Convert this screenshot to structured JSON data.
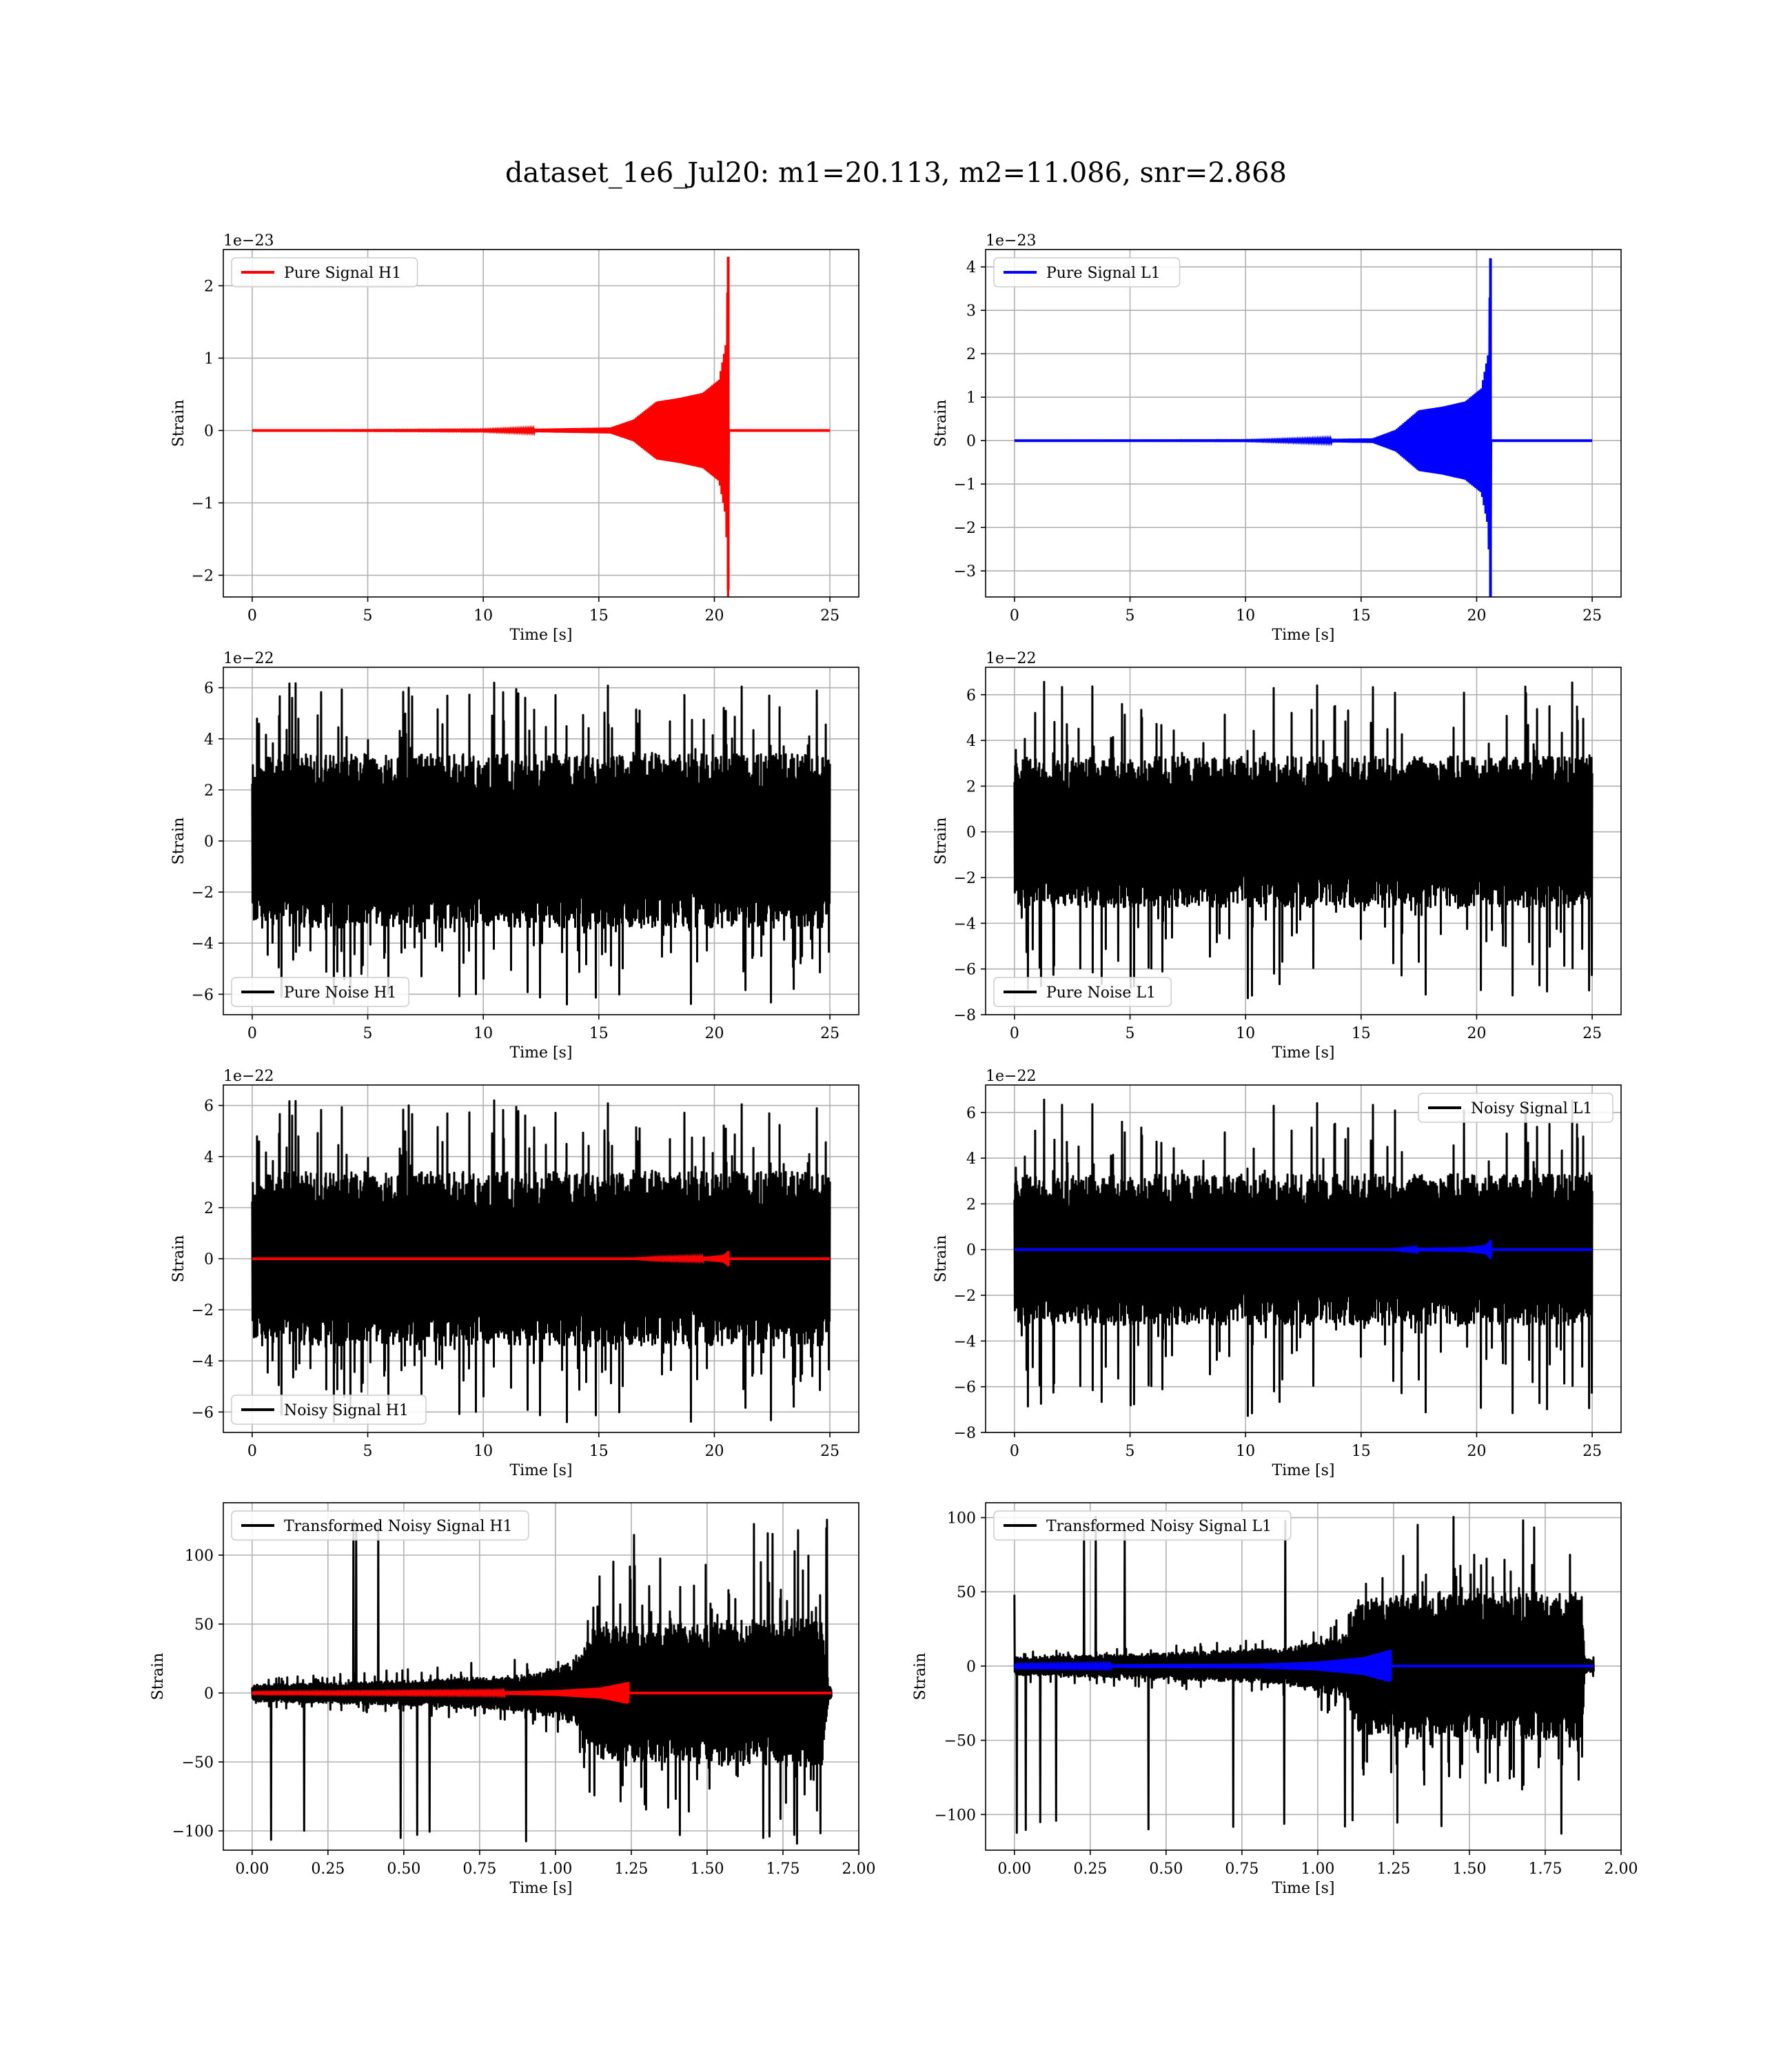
{
  "figure": {
    "title": "dataset_1e6_Jul20: m1=20.113, m2=11.086, snr=2.868"
  },
  "colors": {
    "h1_signal": "#ff0000",
    "l1_signal": "#0000ff",
    "noise": "#000000",
    "grid": "#b0b0b0"
  },
  "chart_data": [
    {
      "id": "pure-signal-h1",
      "type": "line",
      "xlabel": "Time [s]",
      "ylabel": "Strain",
      "offset_text": "1e−23",
      "legend": "upper left",
      "xlim": [
        -1.25,
        26.25
      ],
      "ylim": [
        -2.3,
        2.5
      ],
      "xticks": [
        0,
        5,
        10,
        15,
        20,
        25
      ],
      "xtick_labels": [
        "0",
        "5",
        "10",
        "15",
        "20",
        "25"
      ],
      "yticks": [
        -2,
        -1,
        0,
        1,
        2
      ],
      "ytick_labels": [
        "−2",
        "−1",
        "0",
        "1",
        "2"
      ],
      "series": [
        {
          "name": "Pure Signal H1",
          "color": "#ff0000",
          "kind": "chirp",
          "x_start": 0,
          "x_end": 25,
          "merger_time": 20.6,
          "envelope": [
            [
              0,
              0
            ],
            [
              10,
              0.01
            ],
            [
              15.5,
              0.04
            ],
            [
              16.5,
              0.15
            ],
            [
              17.5,
              0.4
            ],
            [
              18.5,
              0.45
            ],
            [
              19.5,
              0.52
            ],
            [
              20.2,
              0.7
            ],
            [
              20.5,
              1.2
            ],
            [
              20.6,
              2.4
            ],
            [
              20.7,
              0
            ]
          ],
          "neg_peak": -2.2
        }
      ]
    },
    {
      "id": "pure-signal-l1",
      "type": "line",
      "xlabel": "Time [s]",
      "ylabel": "Strain",
      "offset_text": "1e−23",
      "legend": "upper left",
      "xlim": [
        -1.25,
        26.25
      ],
      "ylim": [
        -3.6,
        4.4
      ],
      "xticks": [
        0,
        5,
        10,
        15,
        20,
        25
      ],
      "xtick_labels": [
        "0",
        "5",
        "10",
        "15",
        "20",
        "25"
      ],
      "yticks": [
        -3,
        -2,
        -1,
        0,
        1,
        2,
        3,
        4
      ],
      "ytick_labels": [
        "−3",
        "−2",
        "−1",
        "0",
        "1",
        "2",
        "3",
        "4"
      ],
      "series": [
        {
          "name": "Pure Signal L1",
          "color": "#0000ff",
          "kind": "chirp",
          "x_start": 0,
          "x_end": 25,
          "merger_time": 20.6,
          "envelope": [
            [
              0,
              0
            ],
            [
              10,
              0.01
            ],
            [
              15.5,
              0.05
            ],
            [
              16.5,
              0.25
            ],
            [
              17.5,
              0.7
            ],
            [
              18.5,
              0.78
            ],
            [
              19.5,
              0.9
            ],
            [
              20.2,
              1.2
            ],
            [
              20.5,
              2.0
            ],
            [
              20.6,
              4.2
            ],
            [
              20.7,
              0
            ]
          ],
          "neg_peak": -3.6
        }
      ]
    },
    {
      "id": "pure-noise-h1",
      "type": "line",
      "xlabel": "Time [s]",
      "ylabel": "Strain",
      "offset_text": "1e−22",
      "legend": "lower left",
      "xlim": [
        -1.25,
        26.25
      ],
      "ylim": [
        -6.8,
        6.8
      ],
      "xticks": [
        0,
        5,
        10,
        15,
        20,
        25
      ],
      "xtick_labels": [
        "0",
        "5",
        "10",
        "15",
        "20",
        "25"
      ],
      "yticks": [
        -6,
        -4,
        -2,
        0,
        2,
        4,
        6
      ],
      "ytick_labels": [
        "−6",
        "−4",
        "−2",
        "0",
        "2",
        "4",
        "6"
      ],
      "series": [
        {
          "name": "Pure Noise H1",
          "color": "#000000",
          "kind": "noise",
          "x_start": 0,
          "x_end": 25,
          "seed": 11,
          "band": 3.4,
          "spike_max": 6.2,
          "spike_min": -6.4
        }
      ]
    },
    {
      "id": "pure-noise-l1",
      "type": "line",
      "xlabel": "Time [s]",
      "ylabel": "Strain",
      "offset_text": "1e−22",
      "legend": "lower left",
      "xlim": [
        -1.25,
        26.25
      ],
      "ylim": [
        -8,
        7.2
      ],
      "xticks": [
        0,
        5,
        10,
        15,
        20,
        25
      ],
      "xtick_labels": [
        "0",
        "5",
        "10",
        "15",
        "20",
        "25"
      ],
      "yticks": [
        -8,
        -6,
        -4,
        -2,
        0,
        2,
        4,
        6
      ],
      "ytick_labels": [
        "−8",
        "−6",
        "−4",
        "−2",
        "0",
        "2",
        "4",
        "6"
      ],
      "series": [
        {
          "name": "Pure Noise L1",
          "color": "#000000",
          "kind": "noise",
          "x_start": 0,
          "x_end": 25,
          "seed": 23,
          "band": 3.3,
          "spike_max": 6.6,
          "spike_min": -7.4
        }
      ]
    },
    {
      "id": "noisy-signal-h1",
      "type": "line",
      "xlabel": "Time [s]",
      "ylabel": "Strain",
      "offset_text": "1e−22",
      "legend": "lower left",
      "xlim": [
        -1.25,
        26.25
      ],
      "ylim": [
        -6.8,
        6.8
      ],
      "xticks": [
        0,
        5,
        10,
        15,
        20,
        25
      ],
      "xtick_labels": [
        "0",
        "5",
        "10",
        "15",
        "20",
        "25"
      ],
      "yticks": [
        -6,
        -4,
        -2,
        0,
        2,
        4,
        6
      ],
      "ytick_labels": [
        "−6",
        "−4",
        "−2",
        "0",
        "2",
        "4",
        "6"
      ],
      "series": [
        {
          "name": "Noisy Signal H1",
          "color": "#000000",
          "kind": "noise",
          "x_start": 0,
          "x_end": 25,
          "seed": 11,
          "band": 3.4,
          "spike_max": 6.2,
          "spike_min": -6.4
        },
        {
          "name": "",
          "color": "#ff0000",
          "kind": "chirp",
          "x_start": 0,
          "x_end": 25,
          "merger_time": 20.6,
          "envelope": [
            [
              0,
              0
            ],
            [
              16,
              0
            ],
            [
              17.5,
              0.04
            ],
            [
              19.5,
              0.06
            ],
            [
              20.4,
              0.15
            ],
            [
              20.6,
              0.3
            ],
            [
              20.7,
              0
            ]
          ],
          "neg_peak": -0.25
        }
      ]
    },
    {
      "id": "noisy-signal-l1",
      "type": "line",
      "xlabel": "Time [s]",
      "ylabel": "Strain",
      "offset_text": "1e−22",
      "legend": "upper right",
      "xlim": [
        -1.25,
        26.25
      ],
      "ylim": [
        -8,
        7.2
      ],
      "xticks": [
        0,
        5,
        10,
        15,
        20,
        25
      ],
      "xtick_labels": [
        "0",
        "5",
        "10",
        "15",
        "20",
        "25"
      ],
      "yticks": [
        -8,
        -6,
        -4,
        -2,
        0,
        2,
        4,
        6
      ],
      "ytick_labels": [
        "−8",
        "−6",
        "−4",
        "−2",
        "0",
        "2",
        "4",
        "6"
      ],
      "series": [
        {
          "name": "Noisy Signal L1",
          "color": "#000000",
          "kind": "noise",
          "x_start": 0,
          "x_end": 25,
          "seed": 23,
          "band": 3.3,
          "spike_max": 6.6,
          "spike_min": -7.4
        },
        {
          "name": "",
          "color": "#0000ff",
          "kind": "chirp",
          "x_start": 0,
          "x_end": 25,
          "merger_time": 20.6,
          "envelope": [
            [
              0,
              0
            ],
            [
              16,
              0
            ],
            [
              17.5,
              0.07
            ],
            [
              19.5,
              0.1
            ],
            [
              20.4,
              0.2
            ],
            [
              20.6,
              0.42
            ],
            [
              20.7,
              0
            ]
          ],
          "neg_peak": -0.36
        }
      ]
    },
    {
      "id": "transformed-noisy-signal-h1",
      "type": "line",
      "xlabel": "Time [s]",
      "ylabel": "Strain",
      "offset_text": "",
      "legend": "upper left",
      "xlim": [
        -0.095,
        2.0
      ],
      "ylim": [
        -114,
        138
      ],
      "xticks": [
        0,
        0.25,
        0.5,
        0.75,
        1.0,
        1.25,
        1.5,
        1.75,
        2.0
      ],
      "xtick_labels": [
        "0.00",
        "0.25",
        "0.50",
        "0.75",
        "1.00",
        "1.25",
        "1.50",
        "1.75",
        "2.00"
      ],
      "yticks": [
        -100,
        -50,
        0,
        50,
        100
      ],
      "ytick_labels": [
        "−100",
        "−50",
        "0",
        "50",
        "100"
      ],
      "series": [
        {
          "name": "Transformed Noisy Signal H1",
          "color": "#000000",
          "kind": "whitened",
          "x_start": 0,
          "x_end": 1.91,
          "seed": 37,
          "envelope": [
            [
              0,
              6
            ],
            [
              0.5,
              9
            ],
            [
              0.9,
              13
            ],
            [
              1.05,
              22
            ],
            [
              1.12,
              48
            ],
            [
              1.3,
              50
            ],
            [
              1.88,
              55
            ],
            [
              1.9,
              5
            ],
            [
              1.91,
              4
            ]
          ],
          "spike_max": 127,
          "spike_min": -110
        },
        {
          "name": "",
          "color": "#ff0000",
          "kind": "chirp",
          "x_start": 0,
          "x_end": 1.91,
          "merger_time": 1.24,
          "envelope": [
            [
              0,
              0.5
            ],
            [
              0.8,
              1
            ],
            [
              1.0,
              2
            ],
            [
              1.15,
              4
            ],
            [
              1.24,
              8
            ],
            [
              1.25,
              0
            ]
          ],
          "neg_peak": -7
        }
      ]
    },
    {
      "id": "transformed-noisy-signal-l1",
      "type": "line",
      "xlabel": "Time [s]",
      "ylabel": "Strain",
      "offset_text": "",
      "legend": "upper left",
      "xlim": [
        -0.095,
        2.0
      ],
      "ylim": [
        -124,
        110
      ],
      "xticks": [
        0,
        0.25,
        0.5,
        0.75,
        1.0,
        1.25,
        1.5,
        1.75,
        2.0
      ],
      "xtick_labels": [
        "0.00",
        "0.25",
        "0.50",
        "0.75",
        "1.00",
        "1.25",
        "1.50",
        "1.75",
        "2.00"
      ],
      "yticks": [
        -100,
        -50,
        0,
        50,
        100
      ],
      "ytick_labels": [
        "−100",
        "−50",
        "0",
        "50",
        "100"
      ],
      "series": [
        {
          "name": "Transformed Noisy Signal L1",
          "color": "#000000",
          "kind": "whitened",
          "x_start": 0,
          "x_end": 1.91,
          "seed": 41,
          "envelope": [
            [
              0,
              6
            ],
            [
              0.4,
              8
            ],
            [
              0.9,
              12
            ],
            [
              1.1,
              22
            ],
            [
              1.12,
              45
            ],
            [
              1.3,
              48
            ],
            [
              1.87,
              50
            ],
            [
              1.88,
              5
            ],
            [
              1.91,
              4
            ]
          ],
          "spike_max": 101,
          "spike_min": -113,
          "start_spike": 48
        },
        {
          "name": "",
          "color": "#0000ff",
          "kind": "chirp",
          "x_start": 0,
          "x_end": 1.91,
          "merger_time": 1.24,
          "envelope": [
            [
              0,
              0.8
            ],
            [
              0.8,
              1.5
            ],
            [
              1.0,
              3
            ],
            [
              1.15,
              6
            ],
            [
              1.24,
              11
            ],
            [
              1.25,
              0
            ]
          ],
          "neg_peak": -10
        }
      ]
    }
  ]
}
